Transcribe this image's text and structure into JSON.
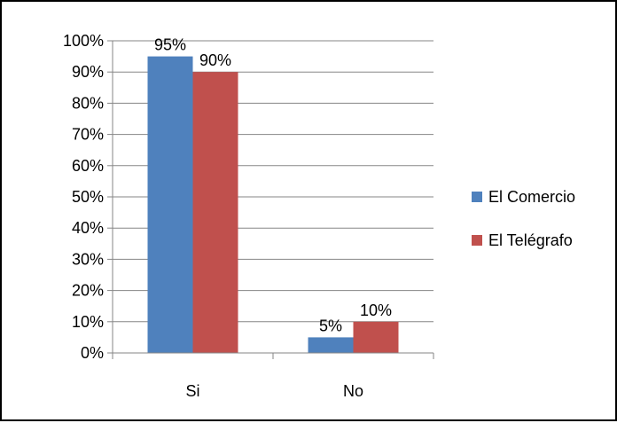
{
  "chart_data": {
    "type": "bar",
    "categories": [
      "Si",
      "No"
    ],
    "series": [
      {
        "name": "El Comercio",
        "values": [
          95,
          5
        ],
        "labels": [
          "95%",
          "5%"
        ],
        "color": "#4F81BD"
      },
      {
        "name": "El Telégrafo",
        "values": [
          90,
          10
        ],
        "labels": [
          "90%",
          "10%"
        ],
        "color": "#C0504D"
      }
    ],
    "ylim": [
      0,
      100
    ],
    "yticks": [
      "0%",
      "10%",
      "20%",
      "30%",
      "40%",
      "50%",
      "60%",
      "70%",
      "80%",
      "90%",
      "100%"
    ],
    "ytick_values": [
      0,
      10,
      20,
      30,
      40,
      50,
      60,
      70,
      80,
      90,
      100
    ],
    "grid": true,
    "legend_position": "right"
  }
}
